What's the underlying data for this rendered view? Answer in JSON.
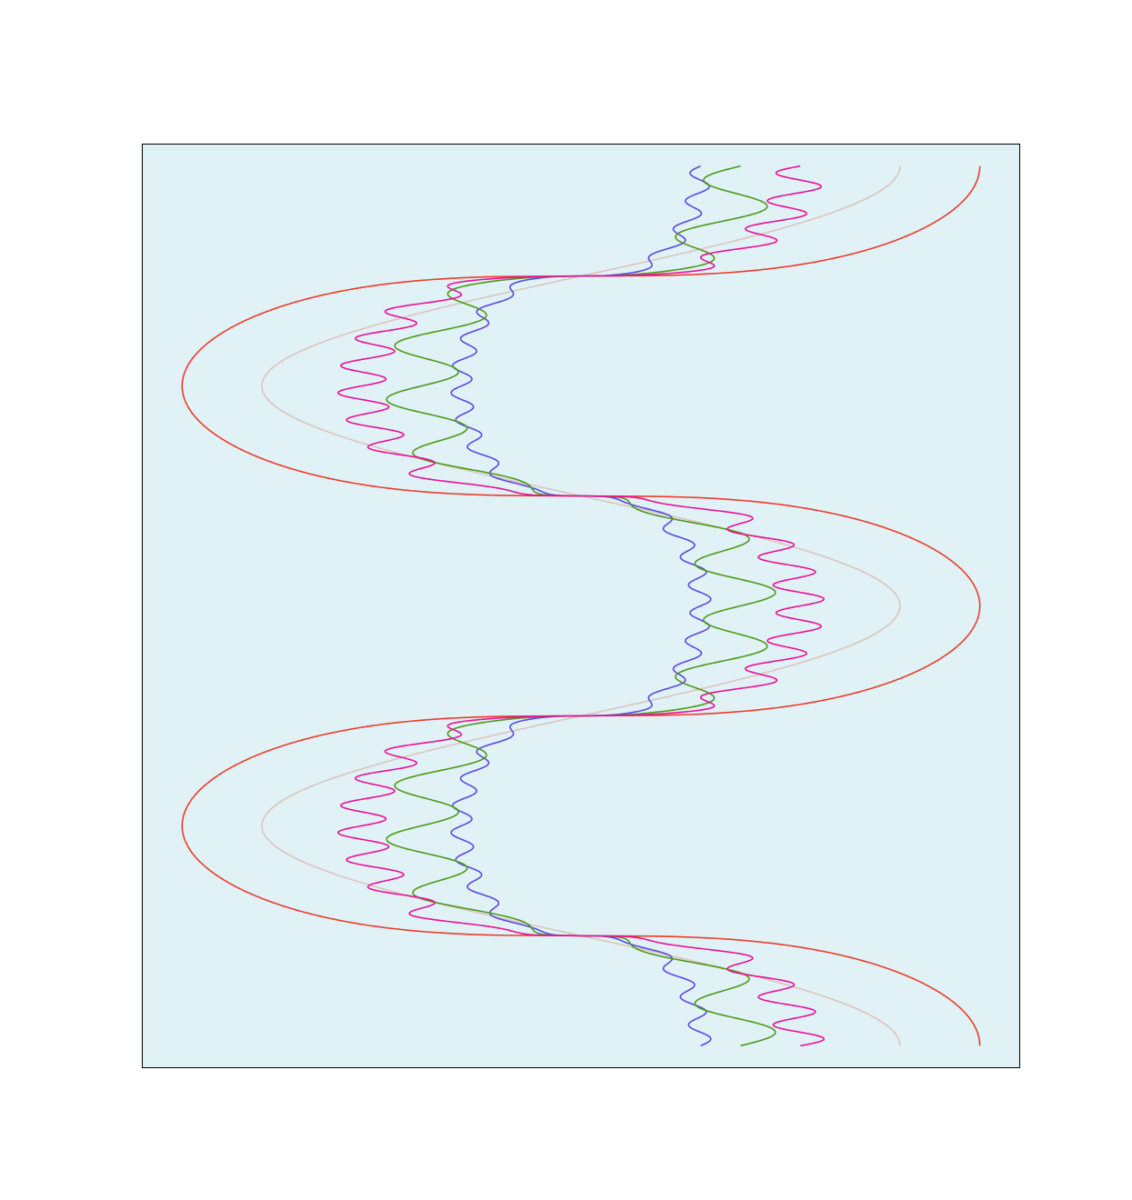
{
  "chart_data": {
    "type": "line",
    "title": "",
    "xlabel": "",
    "ylabel": "",
    "axes_visible": false,
    "grid": false,
    "legend": "none",
    "background_color": "#e0f2f6",
    "xlim": [
      -1.1,
      1.1
    ],
    "ylim": [
      -0.1,
      4.1
    ],
    "y_range": [
      0,
      4
    ],
    "series": [
      {
        "color": "#dcc3bd",
        "amplitude": 0.8,
        "wiggle_frequency": 0,
        "wiggle_amplitude": 0,
        "y_power": 1.0
      },
      {
        "color": "#ee3b2b",
        "amplitude": 1.0,
        "wiggle_frequency": 0,
        "wiggle_amplitude": 0,
        "y_power": 0.33
      },
      {
        "color": "#5b48e6",
        "amplitude": 0.3,
        "wiggle_frequency": 16,
        "wiggle_amplitude": 0.026,
        "y_power": 0.33
      },
      {
        "color": "#4d9918",
        "amplitude": 0.4,
        "wiggle_frequency": 8,
        "wiggle_amplitude": 0.09,
        "y_power": 0.33
      },
      {
        "color": "#ea1199",
        "amplitude": 0.55,
        "wiggle_frequency": 16,
        "wiggle_amplitude": 0.06,
        "y_power": 0.33
      }
    ]
  }
}
